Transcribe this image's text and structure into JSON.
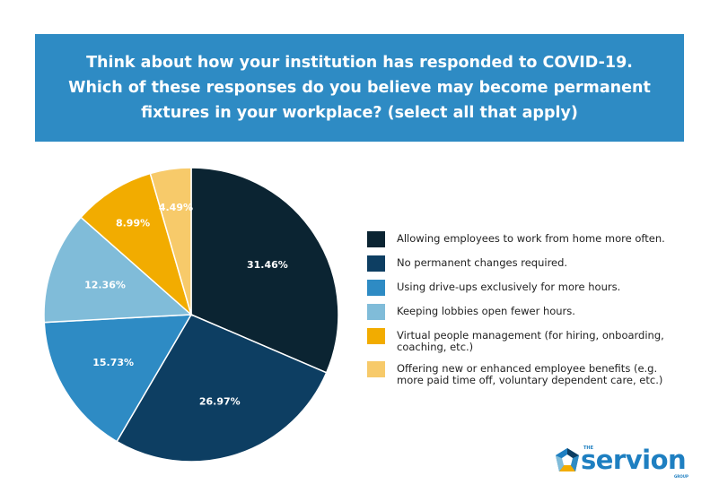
{
  "title": {
    "lines": [
      "Think about how your institution has responded to COVID-19.",
      "Which of these responses do you believe may become permanent",
      "fixtures in your workplace? (select all that apply)"
    ]
  },
  "chart_data": {
    "type": "pie",
    "title": "Think about how your institution has responded to COVID-19. Which of these responses do you believe may become permanent fixtures in your workplace? (select all that apply)",
    "slices": [
      {
        "label": "Allowing employees to work from home more often.",
        "value": 31.46,
        "value_label": "31.46%",
        "color": "#0b2432",
        "text_color": "#ffffff"
      },
      {
        "label": "No permanent changes required.",
        "value": 26.97,
        "value_label": "26.97%",
        "color": "#0d3e62",
        "text_color": "#ffffff"
      },
      {
        "label": "Using drive-ups exclusively for more hours.",
        "value": 15.73,
        "value_label": "15.73%",
        "color": "#2e8bc4",
        "text_color": "#ffffff"
      },
      {
        "label": "Keeping lobbies open fewer hours.",
        "value": 12.36,
        "value_label": "12.36%",
        "color": "#80bcd9",
        "text_color": "#ffffff"
      },
      {
        "label": "Virtual people management (for hiring, onboarding, coaching, etc.)",
        "value": 8.99,
        "value_label": "8.99%",
        "color": "#f2ac00",
        "text_color": "#ffffff"
      },
      {
        "label": "Offering new or enhanced employee benefits (e.g. more paid time off, voluntary dependent care, etc.)",
        "value": 4.49,
        "value_label": "4.49%",
        "color": "#f7ca6a",
        "text_color": "#ffffff"
      }
    ],
    "start": "12 o'clock",
    "direction": "clockwise",
    "legend_position": "right"
  },
  "logo": {
    "the": "THE",
    "word": "servion",
    "group": "GROUP"
  }
}
